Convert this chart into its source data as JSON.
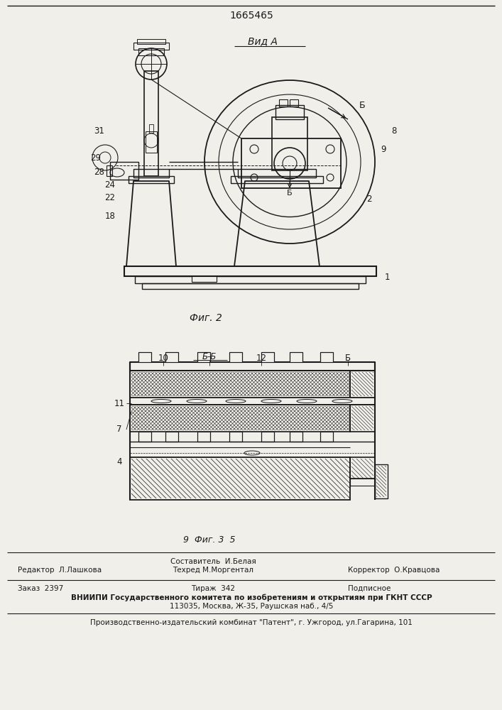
{
  "patent_number": "1665465",
  "view_label": "Вид А",
  "fig2_label": "Фиг. 2",
  "fig3_caption": "9  Фиг. 3  5",
  "background_color": "#f0efea",
  "line_color": "#1a1a1a",
  "footer_line1_mid1": "Составитель  И.Белая",
  "footer_line1_left": "Редактор  Л.Лашкова",
  "footer_line1_mid2": "Техред М.Моргентал",
  "footer_line1_right": "Корректор  О.Кравцова",
  "footer_line2_left": "Заказ  2397",
  "footer_line2_mid": "Тираж  342",
  "footer_line2_right": "Подписное",
  "footer_line3": "ВНИИПИ Государственного комитета по изобретениям и открытиям при ГКНТ СССР",
  "footer_line4": "113035, Москва, Ж-35, Раушская наб., 4/5",
  "footer_line5": "Производственно-издательский комбинат \"Патент\", г. Ужгород, ул.Гагарина, 101"
}
